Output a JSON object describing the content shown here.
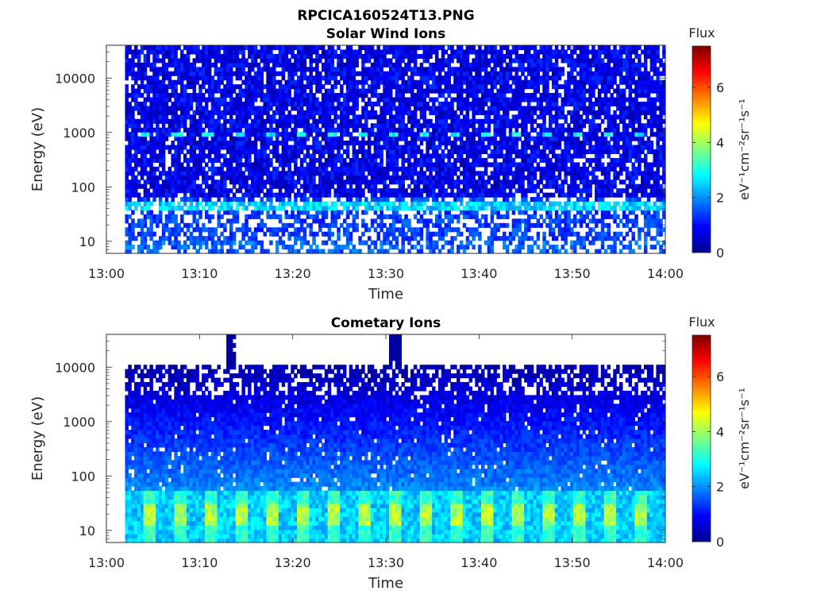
{
  "figure": {
    "title": "RPCICA160524T13.PNG"
  },
  "chart_data": [
    {
      "type": "heatmap",
      "title": "Solar Wind Ions",
      "xlabel": "Time",
      "ylabel": "Energy (eV)",
      "y_scale": "log",
      "x_range": [
        "13:00",
        "14:00"
      ],
      "y_range": [
        6,
        40000
      ],
      "x_ticks": [
        "13:00",
        "13:10",
        "13:20",
        "13:30",
        "13:40",
        "13:50",
        "14:00"
      ],
      "y_ticks": [
        "10",
        "100",
        "1000",
        "10000"
      ],
      "data_start": "13:02",
      "colorbar": {
        "label": "Flux",
        "unit_label": "eV⁻¹cm⁻²sr⁻¹s⁻¹",
        "range": [
          0,
          7.5
        ],
        "ticks": [
          "0",
          "2",
          "4",
          "6"
        ],
        "colormap": "jet"
      },
      "features": [
        {
          "energy_eV": 900,
          "flux": 3,
          "pattern": "periodic peaks every ~3.3 min"
        },
        {
          "energy_eV": 45,
          "flux": 2.5,
          "pattern": "continuous band"
        }
      ],
      "background_flux": "0-1.5, with gaps (white) of no data"
    },
    {
      "type": "heatmap",
      "title": "Cometary Ions",
      "xlabel": "Time",
      "ylabel": "Energy (eV)",
      "y_scale": "log",
      "x_range": [
        "13:00",
        "14:00"
      ],
      "y_range": [
        6,
        40000
      ],
      "x_ticks": [
        "13:00",
        "13:10",
        "13:20",
        "13:30",
        "13:40",
        "13:50",
        "14:00"
      ],
      "y_ticks": [
        "10",
        "100",
        "1000",
        "10000"
      ],
      "data_start": "13:02",
      "colorbar": {
        "label": "Flux",
        "unit_label": "eV⁻¹cm⁻²sr⁻¹s⁻¹",
        "range": [
          0,
          7.5
        ],
        "ticks": [
          "0",
          "2",
          "4",
          "6"
        ],
        "colormap": "jet"
      },
      "features": [
        {
          "energy_range_eV": [
            6,
            50
          ],
          "flux": "3-4.5",
          "pattern": "periodic peaks every ~3.3 min near 20 eV"
        },
        {
          "energy_range_eV": [
            50,
            11000
          ],
          "flux": "decreasing from 2 to 0.5 with energy"
        }
      ],
      "background_flux": "no data above ~11000 eV except brief spikes near 13:13 and 13:31"
    }
  ]
}
